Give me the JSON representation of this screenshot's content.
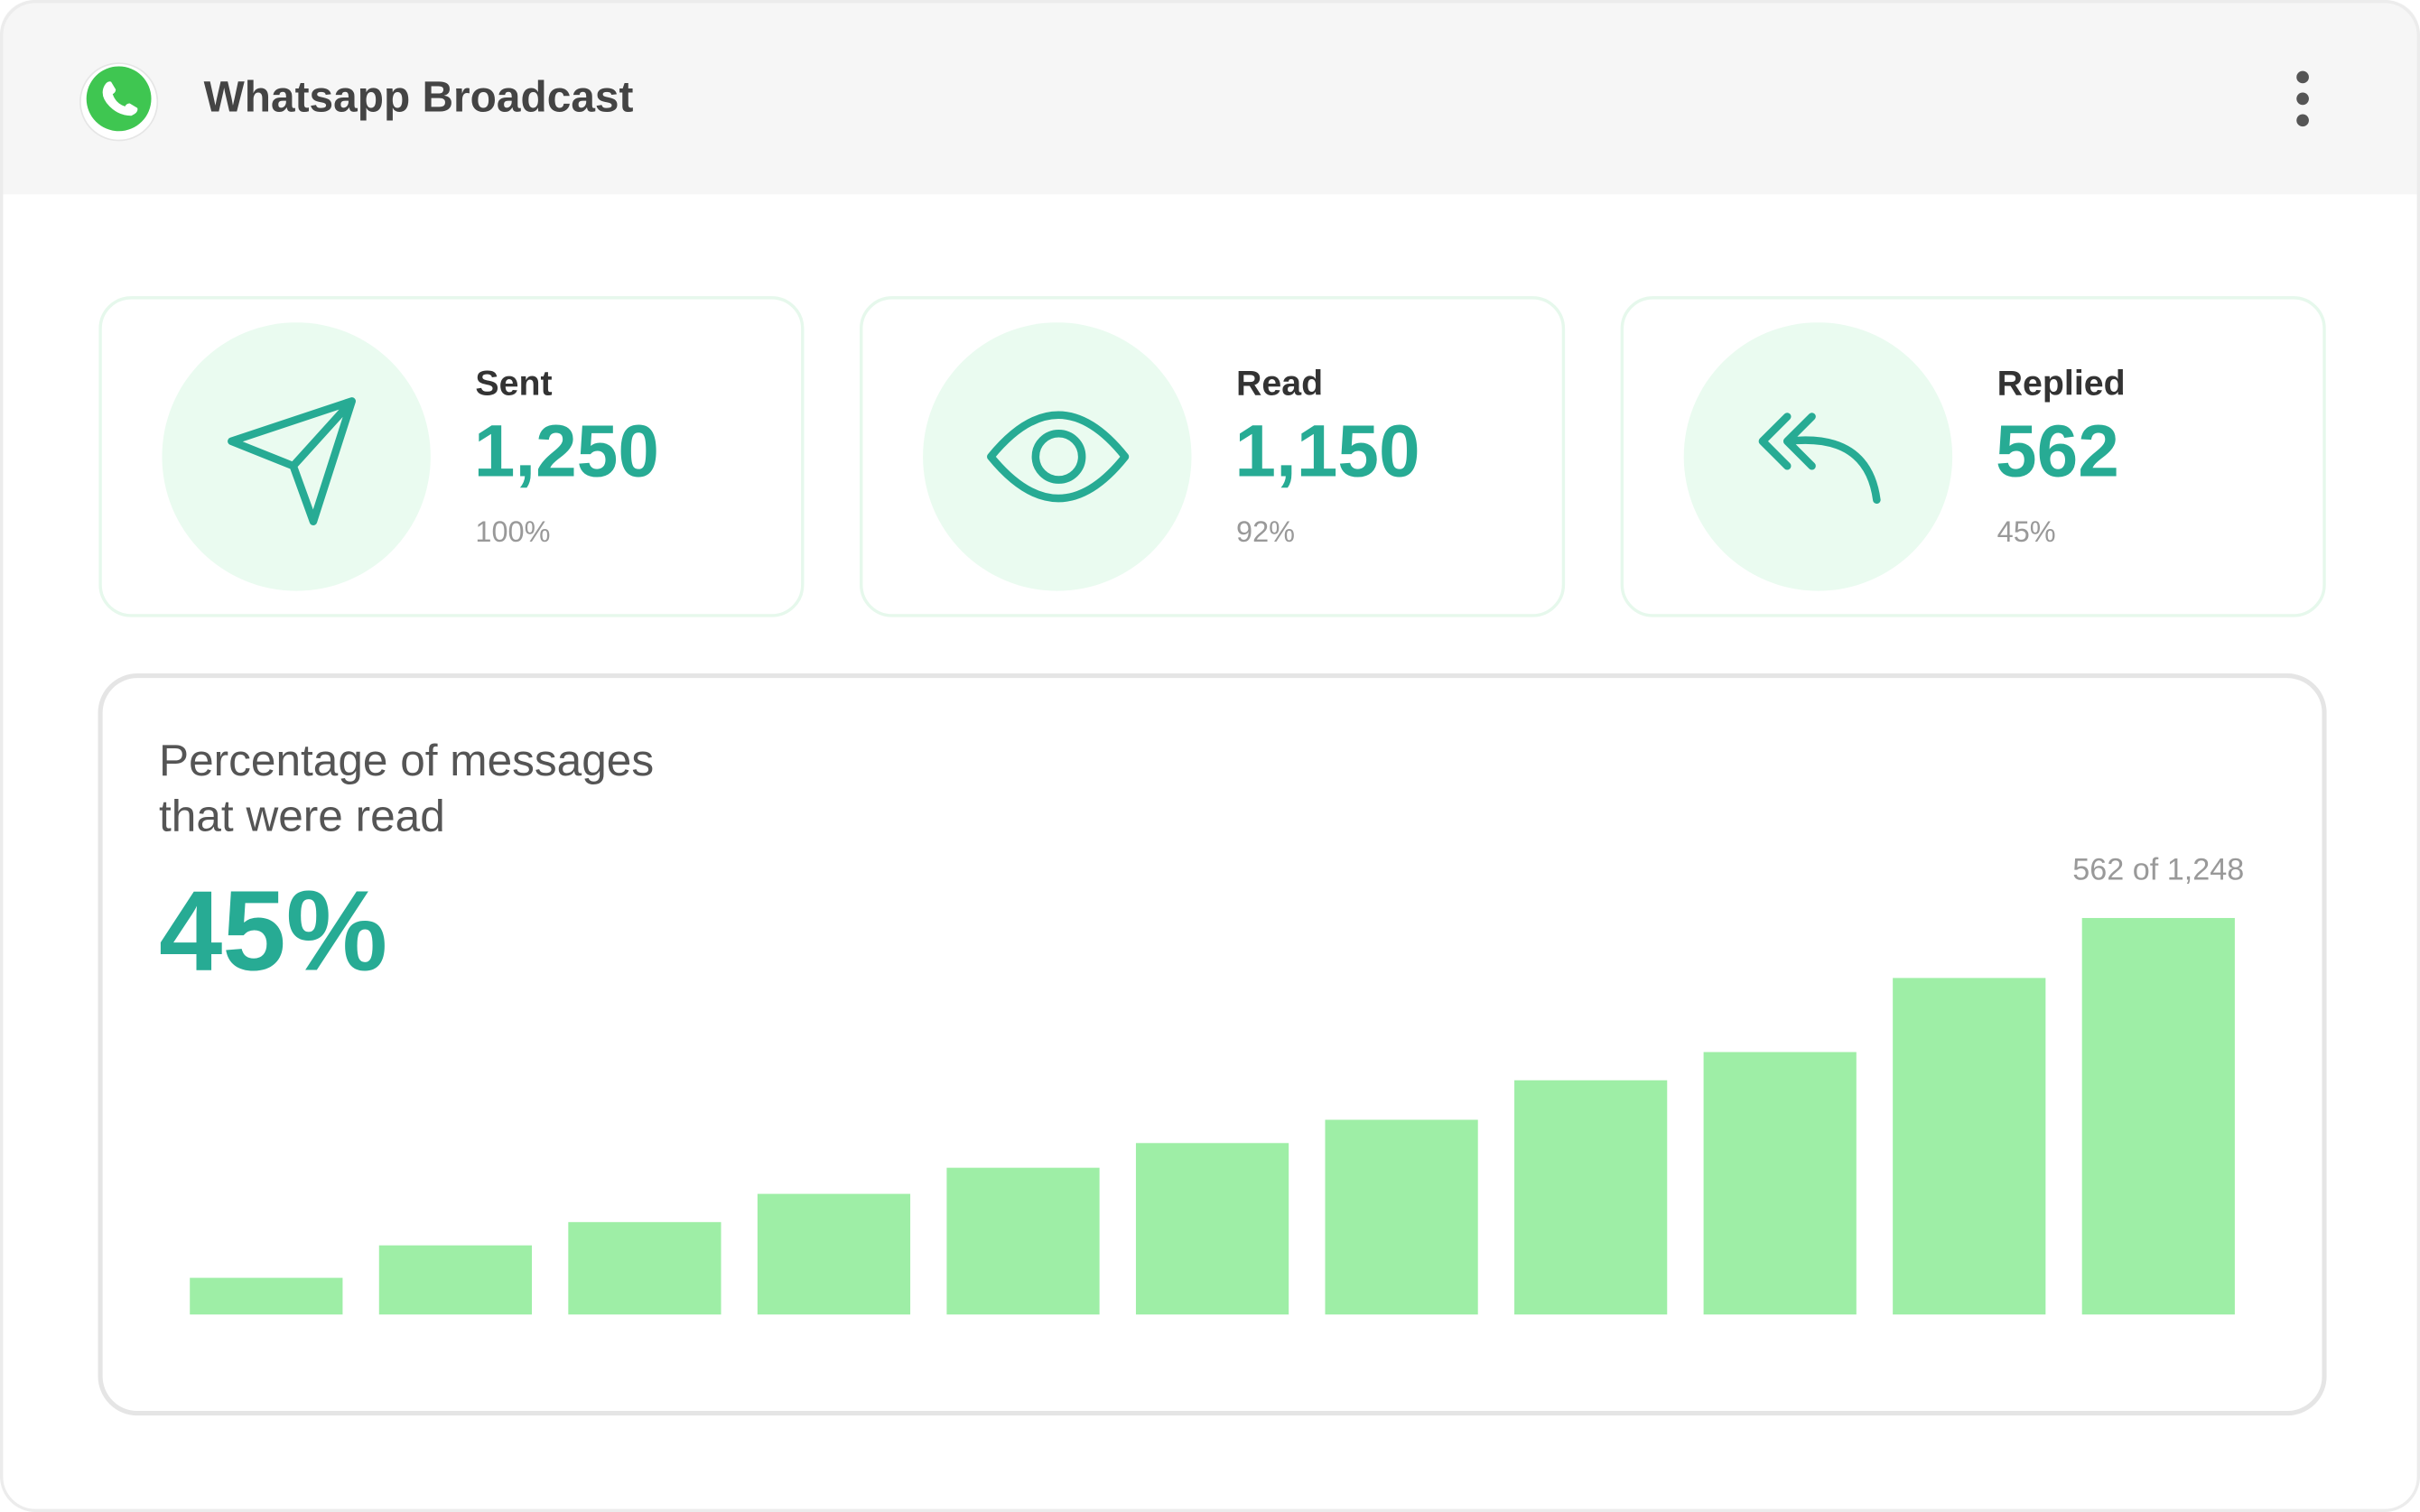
{
  "header": {
    "title": "Whatsapp Broadcast"
  },
  "cards": [
    {
      "label": "Sent",
      "value": "1,250",
      "percent": "100%"
    },
    {
      "label": "Read",
      "value": "1,150",
      "percent": "92%"
    },
    {
      "label": "Replied",
      "value": "562",
      "percent": "45%"
    }
  ],
  "chart_data": {
    "type": "bar",
    "title_lines": [
      "Percentage of messages",
      "that were read"
    ],
    "headline": "45%",
    "annotation": "562 of 1,248",
    "values": [
      52,
      98,
      131,
      171,
      208,
      243,
      276,
      332,
      372,
      477,
      562
    ],
    "color": "#9eeea6"
  }
}
